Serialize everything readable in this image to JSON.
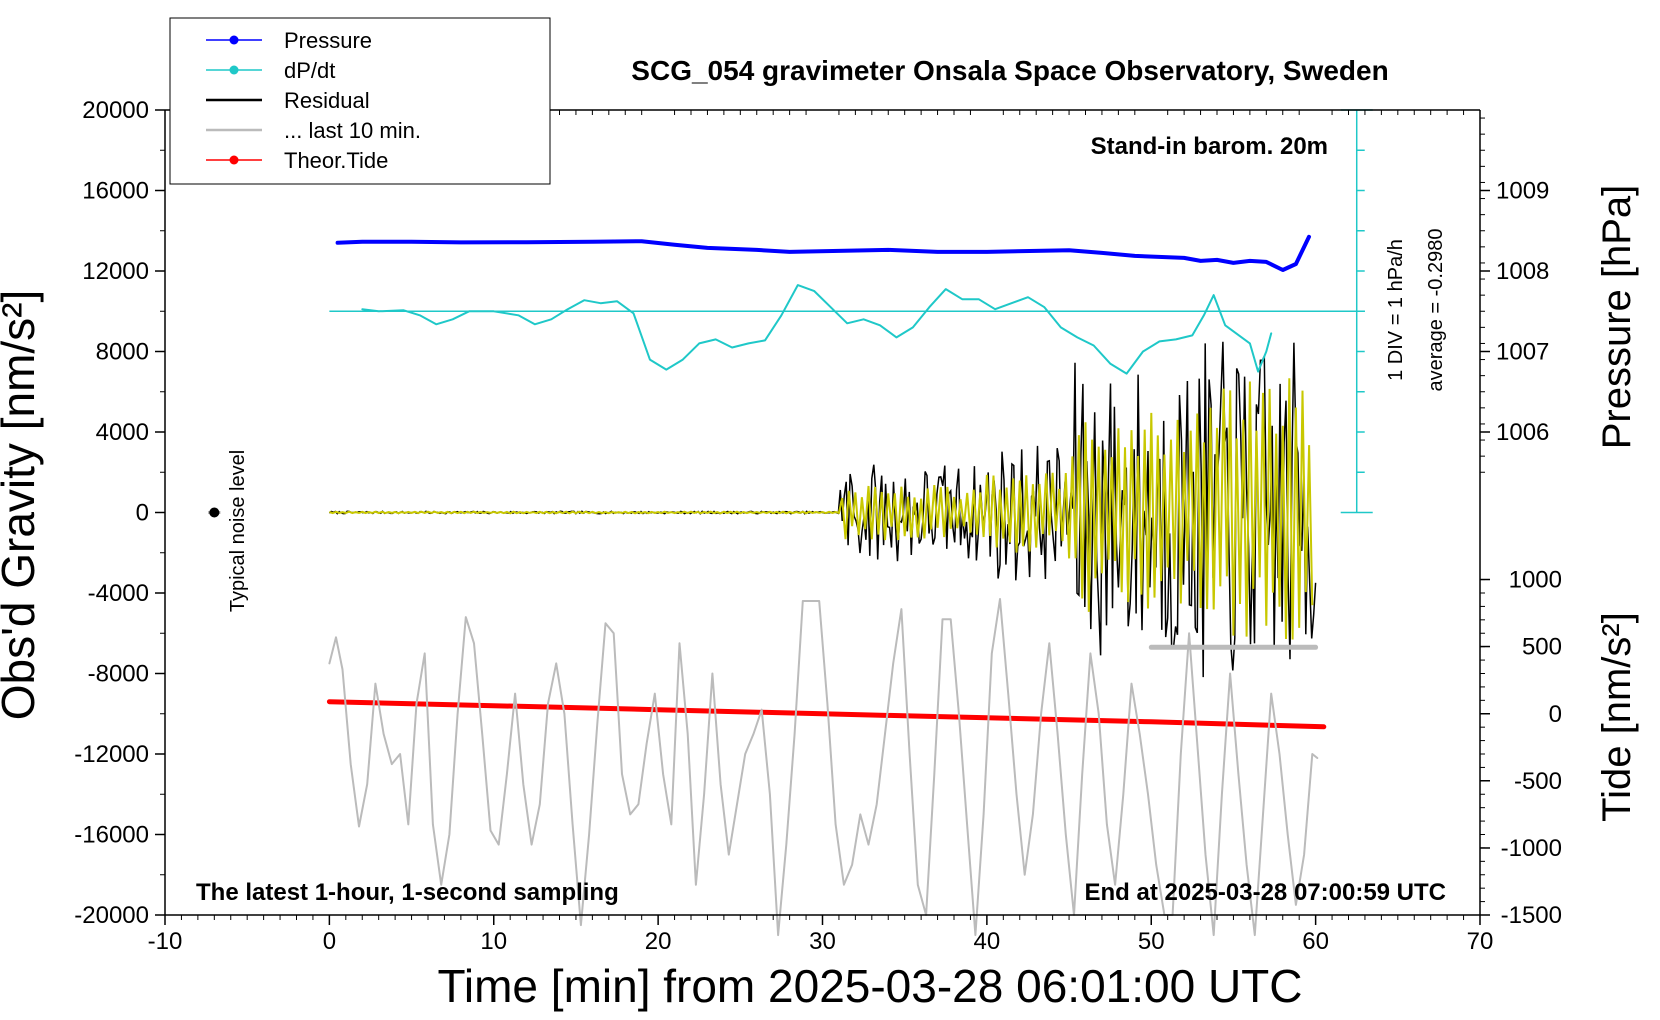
{
  "chart_data": {
    "type": "line",
    "title": "SCG_054 gravimeter Onsala Space Observatory, Sweden",
    "xlabel": "Time [min] from 2025-03-28 06:01:00 UTC",
    "ylabel_left": "Obs'd Gravity [nm/s²]",
    "ylabel_right_top": "Pressure [hPa]",
    "ylabel_right_bottom": "Tide [nm/s²]",
    "xlim": [
      -10,
      70
    ],
    "ylim": [
      -20000,
      20000
    ],
    "x_ticks": [
      -10,
      0,
      10,
      20,
      30,
      40,
      50,
      60,
      70
    ],
    "y_ticks": [
      20000,
      16000,
      12000,
      8000,
      4000,
      0,
      -4000,
      -8000,
      -12000,
      -16000,
      -20000
    ],
    "pressure_axis": {
      "ticks": [
        1009,
        1008,
        1007,
        1006
      ],
      "gravity_equivalent": [
        16000,
        12000,
        8000,
        4000
      ]
    },
    "tide_axis": {
      "ticks": [
        1000,
        500,
        0,
        -500,
        -1000,
        -1500
      ],
      "gravity_equivalent": [
        -3330,
        -6660,
        -10000,
        -13330,
        -16670,
        -20000
      ]
    },
    "annotations": {
      "stand_in": "Stand-in barom. 20m",
      "latest": "The latest 1-hour, 1-second sampling",
      "end_at": "End at 2025-03-28 07:00:59 UTC",
      "noise": "Typical noise level",
      "div": "1 DIV = 1 hPa/h",
      "average": "average = -0.2980"
    },
    "legend": [
      {
        "name": "Pressure",
        "color": "#0000ff",
        "marker": true
      },
      {
        "name": "dP/dt",
        "color": "#1fc8c8",
        "marker": true
      },
      {
        "name": "Residual",
        "color": "#000000",
        "marker": false
      },
      {
        "name": "... last 10 min.",
        "color": "#bbbbbb",
        "marker": false
      },
      {
        "name": "Theor.Tide",
        "color": "#ff0000",
        "marker": true
      }
    ],
    "noise_marker": {
      "x": -7,
      "y": 0
    },
    "dpdt_scale": {
      "x": 62.5,
      "y_top": 20000,
      "y_bottom": 0,
      "baseline_y": 10000,
      "ticks": [
        18000,
        16000,
        14000,
        12000,
        10000,
        8000,
        6000,
        4000,
        2000
      ]
    },
    "series": [
      {
        "name": "Pressure",
        "color": "#0000ff",
        "width": 4,
        "points": [
          [
            0.5,
            13400
          ],
          [
            2,
            13450
          ],
          [
            5,
            13450
          ],
          [
            8,
            13420
          ],
          [
            12,
            13430
          ],
          [
            16,
            13450
          ],
          [
            19,
            13480
          ],
          [
            21,
            13300
          ],
          [
            23,
            13150
          ],
          [
            26,
            13050
          ],
          [
            28,
            12950
          ],
          [
            31,
            13000
          ],
          [
            34,
            13050
          ],
          [
            37,
            12950
          ],
          [
            40,
            12950
          ],
          [
            43,
            13000
          ],
          [
            45,
            13030
          ],
          [
            47,
            12900
          ],
          [
            49,
            12750
          ],
          [
            52,
            12650
          ],
          [
            53,
            12500
          ],
          [
            54,
            12550
          ],
          [
            55,
            12400
          ],
          [
            56,
            12500
          ],
          [
            57,
            12450
          ],
          [
            58,
            12050
          ],
          [
            58.8,
            12350
          ],
          [
            59.6,
            13700
          ]
        ]
      },
      {
        "name": "dP/dt",
        "color": "#1fc8c8",
        "width": 2,
        "points": [
          [
            2,
            10100
          ],
          [
            3,
            10000
          ],
          [
            4.5,
            10050
          ],
          [
            5.5,
            9800
          ],
          [
            6.5,
            9350
          ],
          [
            7.5,
            9600
          ],
          [
            8.5,
            10000
          ],
          [
            10,
            10000
          ],
          [
            11.5,
            9800
          ],
          [
            12.5,
            9350
          ],
          [
            13.5,
            9600
          ],
          [
            14.5,
            10100
          ],
          [
            15.5,
            10550
          ],
          [
            16.5,
            10400
          ],
          [
            17.5,
            10500
          ],
          [
            18.5,
            9900
          ],
          [
            19.5,
            7600
          ],
          [
            20.5,
            7100
          ],
          [
            21.5,
            7600
          ],
          [
            22.5,
            8400
          ],
          [
            23.5,
            8600
          ],
          [
            24.5,
            8200
          ],
          [
            25.5,
            8400
          ],
          [
            26.5,
            8550
          ],
          [
            27.5,
            9800
          ],
          [
            28.5,
            11300
          ],
          [
            29.5,
            11000
          ],
          [
            30.5,
            10200
          ],
          [
            31.5,
            9400
          ],
          [
            32.5,
            9600
          ],
          [
            33.5,
            9300
          ],
          [
            34.5,
            8700
          ],
          [
            35.5,
            9200
          ],
          [
            36.5,
            10200
          ],
          [
            37.5,
            11100
          ],
          [
            38.5,
            10600
          ],
          [
            39.5,
            10600
          ],
          [
            40.5,
            10100
          ],
          [
            41.5,
            10400
          ],
          [
            42.5,
            10700
          ],
          [
            43.5,
            10200
          ],
          [
            44.5,
            9200
          ],
          [
            45.5,
            8700
          ],
          [
            46.5,
            8300
          ],
          [
            47.5,
            7400
          ],
          [
            48.5,
            6900
          ],
          [
            49.5,
            8000
          ],
          [
            50.5,
            8500
          ],
          [
            51.5,
            8600
          ],
          [
            52.5,
            8800
          ],
          [
            53.2,
            9800
          ],
          [
            53.8,
            10800
          ],
          [
            54.5,
            9300
          ],
          [
            55.5,
            8700
          ],
          [
            56,
            8400
          ],
          [
            56.5,
            7000
          ],
          [
            57,
            8000
          ],
          [
            57.3,
            8900
          ]
        ]
      },
      {
        "name": "Theor.Tide",
        "color": "#ff0000",
        "width": 5,
        "points": [
          [
            0,
            -9400
          ],
          [
            10,
            -9600
          ],
          [
            20,
            -9800
          ],
          [
            30,
            -10000
          ],
          [
            40,
            -10200
          ],
          [
            50,
            -10400
          ],
          [
            60.5,
            -10650
          ]
        ]
      },
      {
        "name": "... last 10 min.",
        "color": "#bbbbbb",
        "width": 2,
        "points": [
          [
            0,
            -7500
          ],
          [
            0.4,
            -6200
          ],
          [
            0.8,
            -7800
          ],
          [
            1.3,
            -12500
          ],
          [
            1.8,
            -15600
          ],
          [
            2.3,
            -13500
          ],
          [
            2.8,
            -8500
          ],
          [
            3.3,
            -11000
          ],
          [
            3.8,
            -12500
          ],
          [
            4.3,
            -12000
          ],
          [
            4.8,
            -15500
          ],
          [
            5.3,
            -9500
          ],
          [
            5.8,
            -7000
          ],
          [
            6.3,
            -15500
          ],
          [
            6.8,
            -18500
          ],
          [
            7.3,
            -16000
          ],
          [
            7.8,
            -10000
          ],
          [
            8.3,
            -5200
          ],
          [
            8.8,
            -6500
          ],
          [
            9.3,
            -11000
          ],
          [
            9.8,
            -15800
          ],
          [
            10.3,
            -16500
          ],
          [
            10.8,
            -13000
          ],
          [
            11.3,
            -9000
          ],
          [
            11.8,
            -13500
          ],
          [
            12.3,
            -16500
          ],
          [
            12.8,
            -14500
          ],
          [
            13.3,
            -9500
          ],
          [
            13.8,
            -7500
          ],
          [
            14.3,
            -10000
          ],
          [
            14.8,
            -15500
          ],
          [
            15.3,
            -20500
          ],
          [
            15.8,
            -16000
          ],
          [
            16.3,
            -10500
          ],
          [
            16.8,
            -5500
          ],
          [
            17.3,
            -6000
          ],
          [
            17.8,
            -13000
          ],
          [
            18.3,
            -15000
          ],
          [
            18.8,
            -14500
          ],
          [
            19.3,
            -11500
          ],
          [
            19.8,
            -9000
          ],
          [
            20.3,
            -13000
          ],
          [
            20.8,
            -15500
          ],
          [
            21.3,
            -6500
          ],
          [
            21.8,
            -11000
          ],
          [
            22.3,
            -18500
          ],
          [
            22.8,
            -14000
          ],
          [
            23.3,
            -8000
          ],
          [
            23.8,
            -13500
          ],
          [
            24.3,
            -17000
          ],
          [
            24.8,
            -14500
          ],
          [
            25.3,
            -12000
          ],
          [
            25.8,
            -11000
          ],
          [
            26.3,
            -9800
          ],
          [
            26.8,
            -14000
          ],
          [
            27.3,
            -21000
          ],
          [
            27.8,
            -16500
          ],
          [
            28.3,
            -11000
          ],
          [
            28.8,
            -4400
          ],
          [
            29.3,
            -4400
          ],
          [
            29.8,
            -4400
          ],
          [
            30.3,
            -9500
          ],
          [
            30.8,
            -15500
          ],
          [
            31.3,
            -18500
          ],
          [
            31.8,
            -17500
          ],
          [
            32.3,
            -15000
          ],
          [
            32.8,
            -16500
          ],
          [
            33.3,
            -14500
          ],
          [
            33.8,
            -11000
          ],
          [
            34.3,
            -7500
          ],
          [
            34.8,
            -4800
          ],
          [
            35.3,
            -12000
          ],
          [
            35.8,
            -18500
          ],
          [
            36.3,
            -20000
          ],
          [
            36.8,
            -13000
          ],
          [
            37.3,
            -5300
          ],
          [
            37.8,
            -5300
          ],
          [
            38.3,
            -10000
          ],
          [
            38.8,
            -15500
          ],
          [
            39.3,
            -21000
          ],
          [
            39.8,
            -15000
          ],
          [
            40.3,
            -7000
          ],
          [
            40.8,
            -4300
          ],
          [
            41.3,
            -9000
          ],
          [
            41.8,
            -14000
          ],
          [
            42.3,
            -18000
          ],
          [
            42.8,
            -15000
          ],
          [
            43.3,
            -10000
          ],
          [
            43.8,
            -6500
          ],
          [
            44.3,
            -11000
          ],
          [
            44.8,
            -16000
          ],
          [
            45.3,
            -20000
          ],
          [
            45.8,
            -13000
          ],
          [
            46.3,
            -7000
          ],
          [
            46.8,
            -10000
          ],
          [
            47.3,
            -15500
          ],
          [
            47.8,
            -18500
          ],
          [
            48.3,
            -14000
          ],
          [
            48.8,
            -8500
          ],
          [
            49.3,
            -11000
          ],
          [
            49.8,
            -14000
          ],
          [
            50.3,
            -17500
          ],
          [
            50.8,
            -20000
          ],
          [
            51.3,
            -20000
          ],
          [
            51.8,
            -12000
          ],
          [
            52.3,
            -6000
          ],
          [
            52.8,
            -11500
          ],
          [
            53.3,
            -17000
          ],
          [
            53.8,
            -21000
          ],
          [
            54.3,
            -14000
          ],
          [
            54.8,
            -8000
          ],
          [
            55.3,
            -13000
          ],
          [
            55.8,
            -17500
          ],
          [
            56.3,
            -21000
          ],
          [
            56.8,
            -15000
          ],
          [
            57.3,
            -9000
          ],
          [
            57.8,
            -12000
          ],
          [
            58.3,
            -16000
          ],
          [
            58.8,
            -19500
          ],
          [
            59.3,
            -17000
          ],
          [
            59.8,
            -12000
          ],
          [
            60.1,
            -12200
          ]
        ]
      },
      {
        "name": "... last 10 min. mean",
        "color": "#bbbbbb",
        "width": 5,
        "points": [
          [
            50,
            -6700
          ],
          [
            60,
            -6700
          ]
        ]
      }
    ],
    "residual": {
      "color": "#000000",
      "width": 1.5,
      "start": 0,
      "end": 60,
      "segments": [
        {
          "from": 0,
          "to": 31,
          "amplitude": 60
        },
        {
          "from": 31,
          "to": 40,
          "amplitude": 2500
        },
        {
          "from": 40,
          "to": 45,
          "amplitude": 3500
        },
        {
          "from": 45,
          "to": 53,
          "amplitude": 7500
        },
        {
          "from": 53,
          "to": 60,
          "amplitude": 8500
        }
      ]
    },
    "filtered": {
      "color": "#c8c800",
      "width": 2,
      "segments": [
        {
          "from": 0,
          "to": 31,
          "amplitude": 40
        },
        {
          "from": 31,
          "to": 40,
          "amplitude": 1400
        },
        {
          "from": 40,
          "to": 45,
          "amplitude": 2000
        },
        {
          "from": 45,
          "to": 53,
          "amplitude": 5000
        },
        {
          "from": 53,
          "to": 60,
          "amplitude": 7000
        }
      ]
    }
  }
}
